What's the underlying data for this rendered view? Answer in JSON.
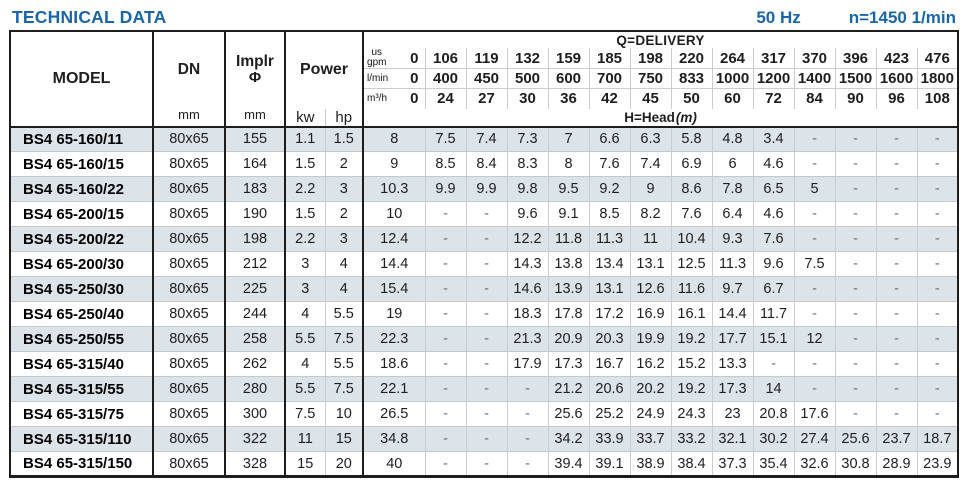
{
  "page": {
    "title": "TECHNICAL DATA",
    "frequency": "50 Hz",
    "speed": "n=1450 1/min"
  },
  "colors": {
    "accent_blue": "#1a66ab",
    "row_stripe": "#dce3e9",
    "grid_gray": "#c7cdd3",
    "grid_dark": "#1d1d1d"
  },
  "table": {
    "headers": {
      "model": "MODEL",
      "dn": "DN",
      "implr_line1": "Implr",
      "implr_line2": "Φ",
      "mm": "mm",
      "power": "Power",
      "kw": "kw",
      "hp": "hp",
      "delivery": "Q=DELIVERY",
      "head_label": "H=Head",
      "head_unit": "(m)",
      "flow_units": [
        {
          "label_lines": [
            "us",
            "gpm"
          ],
          "zero": "0",
          "values": [
            "106",
            "119",
            "132",
            "159",
            "185",
            "198",
            "220",
            "264",
            "317",
            "370",
            "396",
            "423",
            "476"
          ]
        },
        {
          "label_lines": [
            "l/min"
          ],
          "zero": "0",
          "values": [
            "400",
            "450",
            "500",
            "600",
            "700",
            "750",
            "833",
            "1000",
            "1200",
            "1400",
            "1500",
            "1600",
            "1800"
          ]
        },
        {
          "label_lines": [
            "m³/h"
          ],
          "zero": "0",
          "values": [
            "24",
            "27",
            "30",
            "36",
            "42",
            "45",
            "50",
            "60",
            "72",
            "84",
            "90",
            "96",
            "108"
          ]
        }
      ]
    },
    "rows": [
      {
        "model": "BS4 65-160/11",
        "dn": "80x65",
        "implr": "155",
        "kw": "1.1",
        "hp": "1.5",
        "head": [
          "8",
          "7.5",
          "7.4",
          "7.3",
          "7",
          "6.6",
          "6.3",
          "5.8",
          "4.8",
          "3.4",
          "-",
          "-",
          "-",
          "-"
        ]
      },
      {
        "model": "BS4 65-160/15",
        "dn": "80x65",
        "implr": "164",
        "kw": "1.5",
        "hp": "2",
        "head": [
          "9",
          "8.5",
          "8.4",
          "8.3",
          "8",
          "7.6",
          "7.4",
          "6.9",
          "6",
          "4.6",
          "-",
          "-",
          "-",
          "-"
        ]
      },
      {
        "model": "BS4 65-160/22",
        "dn": "80x65",
        "implr": "183",
        "kw": "2.2",
        "hp": "3",
        "head": [
          "10.3",
          "9.9",
          "9.9",
          "9.8",
          "9.5",
          "9.2",
          "9",
          "8.6",
          "7.8",
          "6.5",
          "5",
          "-",
          "-",
          "-"
        ]
      },
      {
        "model": "BS4 65-200/15",
        "dn": "80x65",
        "implr": "190",
        "kw": "1.5",
        "hp": "2",
        "head": [
          "10",
          "-",
          "-",
          "9.6",
          "9.1",
          "8.5",
          "8.2",
          "7.6",
          "6.4",
          "4.6",
          "-",
          "-",
          "-",
          "-"
        ]
      },
      {
        "model": "BS4 65-200/22",
        "dn": "80x65",
        "implr": "198",
        "kw": "2.2",
        "hp": "3",
        "head": [
          "12.4",
          "-",
          "-",
          "12.2",
          "11.8",
          "11.3",
          "11",
          "10.4",
          "9.3",
          "7.6",
          "-",
          "-",
          "-",
          "-"
        ]
      },
      {
        "model": "BS4 65-200/30",
        "dn": "80x65",
        "implr": "212",
        "kw": "3",
        "hp": "4",
        "head": [
          "14.4",
          "-",
          "-",
          "14.3",
          "13.8",
          "13.4",
          "13.1",
          "12.5",
          "11.3",
          "9.6",
          "7.5",
          "-",
          "-",
          "-"
        ]
      },
      {
        "model": "BS4 65-250/30",
        "dn": "80x65",
        "implr": "225",
        "kw": "3",
        "hp": "4",
        "head": [
          "15.4",
          "-",
          "-",
          "14.6",
          "13.9",
          "13.1",
          "12.6",
          "11.6",
          "9.7",
          "6.7",
          "-",
          "-",
          "-",
          "-"
        ]
      },
      {
        "model": "BS4 65-250/40",
        "dn": "80x65",
        "implr": "244",
        "kw": "4",
        "hp": "5.5",
        "head": [
          "19",
          "-",
          "-",
          "18.3",
          "17.8",
          "17.2",
          "16.9",
          "16.1",
          "14.4",
          "11.7",
          "-",
          "-",
          "-",
          "-"
        ]
      },
      {
        "model": "BS4 65-250/55",
        "dn": "80x65",
        "implr": "258",
        "kw": "5.5",
        "hp": "7.5",
        "head": [
          "22.3",
          "-",
          "-",
          "21.3",
          "20.9",
          "20.3",
          "19.9",
          "19.2",
          "17.7",
          "15.1",
          "12",
          "-",
          "-",
          "-"
        ]
      },
      {
        "model": "BS4 65-315/40",
        "dn": "80x65",
        "implr": "262",
        "kw": "4",
        "hp": "5.5",
        "head": [
          "18.6",
          "-",
          "-",
          "17.9",
          "17.3",
          "16.7",
          "16.2",
          "15.2",
          "13.3",
          "-",
          "-",
          "-",
          "-",
          "-"
        ]
      },
      {
        "model": "BS4 65-315/55",
        "dn": "80x65",
        "implr": "280",
        "kw": "5.5",
        "hp": "7.5",
        "head": [
          "22.1",
          "-",
          "-",
          "-",
          "21.2",
          "20.6",
          "20.2",
          "19.2",
          "17.3",
          "14",
          "-",
          "-",
          "-",
          "-"
        ]
      },
      {
        "model": "BS4 65-315/75",
        "dn": "80x65",
        "implr": "300",
        "kw": "7.5",
        "hp": "10",
        "head": [
          "26.5",
          "-",
          "-",
          "-",
          "25.6",
          "25.2",
          "24.9",
          "24.3",
          "23",
          "20.8",
          "17.6",
          "-",
          "-",
          "-"
        ]
      },
      {
        "model": "BS4 65-315/110",
        "dn": "80x65",
        "implr": "322",
        "kw": "11",
        "hp": "15",
        "head": [
          "34.8",
          "-",
          "-",
          "-",
          "34.2",
          "33.9",
          "33.7",
          "33.2",
          "32.1",
          "30.2",
          "27.4",
          "25.6",
          "23.7",
          "18.7"
        ]
      },
      {
        "model": "BS4 65-315/150",
        "dn": "80x65",
        "implr": "328",
        "kw": "15",
        "hp": "20",
        "head": [
          "40",
          "-",
          "-",
          "-",
          "39.4",
          "39.1",
          "38.9",
          "38.4",
          "37.3",
          "35.4",
          "32.6",
          "30.8",
          "28.9",
          "23.9"
        ]
      }
    ]
  }
}
